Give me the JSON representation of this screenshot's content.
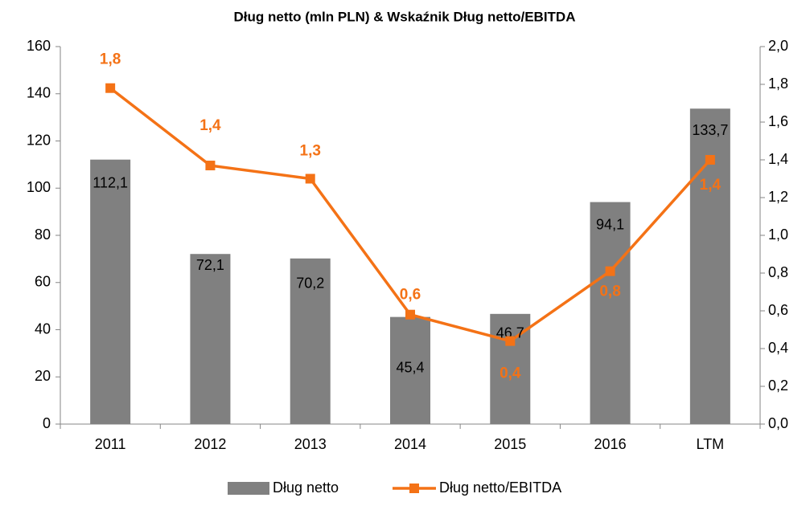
{
  "chart_data": {
    "type": "bar_line",
    "title": "Dług netto (mln PLN) & Wskaźnik Dług netto/EBITDA",
    "categories": [
      "2011",
      "2012",
      "2013",
      "2014",
      "2015",
      "2016",
      "LTM"
    ],
    "series": [
      {
        "name": "Dług netto",
        "type": "bar",
        "color": "#808080",
        "values": [
          112.1,
          72.1,
          70.2,
          45.4,
          46.7,
          94.1,
          133.7
        ],
        "value_labels": [
          "112,1",
          "72,1",
          "70,2",
          "45,4",
          "46,7",
          "94,1",
          "133,7"
        ]
      },
      {
        "name": "Dług netto/EBITDA",
        "type": "line",
        "axis": "y2",
        "color": "#f47216",
        "values": [
          1.78,
          1.37,
          1.3,
          0.58,
          0.44,
          0.81,
          1.4
        ],
        "value_labels": [
          "1,8",
          "1,4",
          "1,3",
          "0,6",
          "0,4",
          "0,8",
          "1,4"
        ]
      }
    ],
    "ylim": [
      0,
      160
    ],
    "yticks": [
      0,
      20,
      40,
      60,
      80,
      100,
      120,
      140,
      160
    ],
    "y2lim": [
      0,
      2
    ],
    "y2ticks": [
      {
        "value": 0,
        "label": "0,0"
      },
      {
        "value": 0.2,
        "label": "0,2"
      },
      {
        "value": 0.4,
        "label": "0,4"
      },
      {
        "value": 0.6,
        "label": "0,6"
      },
      {
        "value": 0.8,
        "label": "0,8"
      },
      {
        "value": 1,
        "label": "1,0"
      },
      {
        "value": 1.2,
        "label": "1,2"
      },
      {
        "value": 1.4,
        "label": "1,4"
      },
      {
        "value": 1.6,
        "label": "1,6"
      },
      {
        "value": 1.8,
        "label": "1,8"
      },
      {
        "value": 2,
        "label": "2,0"
      }
    ],
    "grid": false,
    "legend": "bottom"
  }
}
